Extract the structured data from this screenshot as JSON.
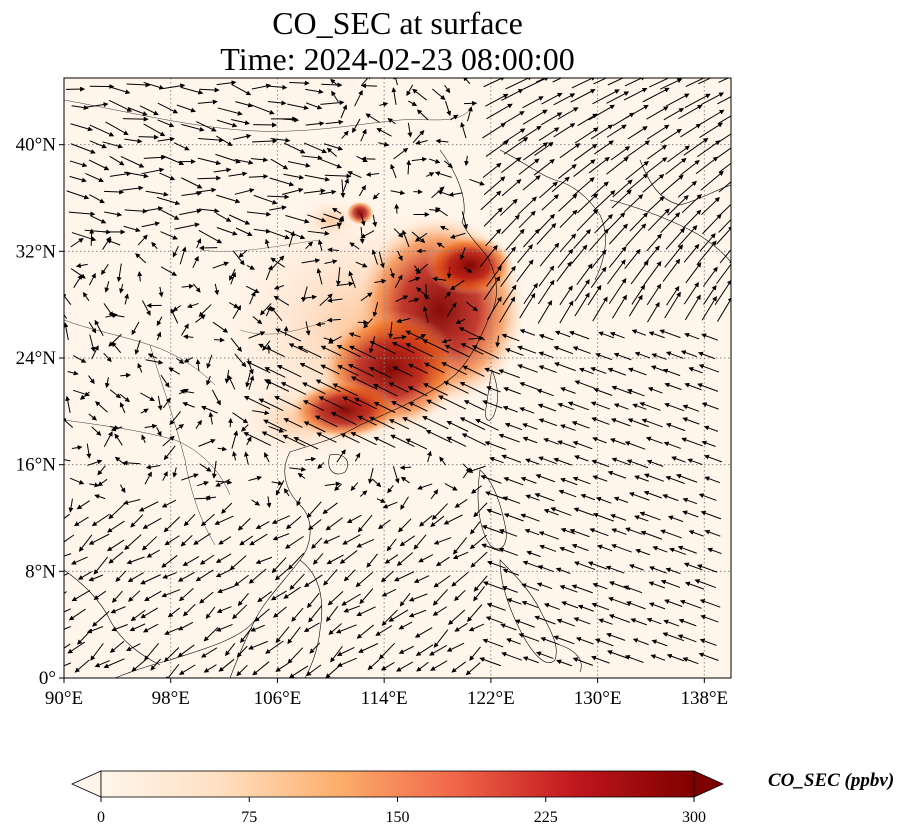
{
  "title": {
    "line1": "CO_SEC at surface",
    "line2": "Time: 2024-02-23 08:00:00"
  },
  "map": {
    "lon_range": [
      90,
      140
    ],
    "lat_range": [
      0,
      45
    ],
    "lon_ticks": [
      "90°E",
      "98°E",
      "106°E",
      "114°E",
      "122°E",
      "130°E",
      "138°E"
    ],
    "lon_tick_values": [
      90,
      98,
      106,
      114,
      122,
      130,
      138
    ],
    "lat_ticks": [
      "0°",
      "8°N",
      "16°N",
      "24°N",
      "32°N",
      "40°N"
    ],
    "lat_tick_values": [
      0,
      8,
      16,
      24,
      32,
      40
    ],
    "gridlines": "dotted",
    "background_color": "#fff5eb",
    "overlay": "wind vectors"
  },
  "colorbar": {
    "label": "CO_SEC (ppbv)",
    "ticks": [
      "0",
      "75",
      "150",
      "225",
      "300"
    ],
    "tick_values": [
      0,
      75,
      150,
      225,
      300
    ],
    "range": [
      0,
      300
    ],
    "colormap": "Oranges-Reds",
    "colors": [
      "#fff5eb",
      "#fdd3a7",
      "#fda662",
      "#f16913",
      "#d94801",
      "#a63603",
      "#7f0000"
    ]
  }
}
